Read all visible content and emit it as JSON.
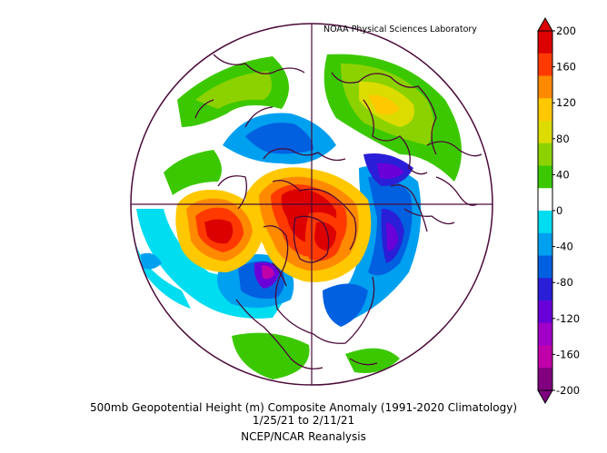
{
  "map": {
    "projection": "north-polar-stereographic",
    "credit": "NOAA Physical Sciences Laboratory",
    "title": "500mb Geopotential Height (m) Composite Anomaly (1991-2020 Climatology)",
    "date_range": "1/25/21  to 2/11/21",
    "source": "NCEP/NCAR Reanalysis"
  },
  "colorbar": {
    "ticks": [
      "200",
      "160",
      "120",
      "80",
      "40",
      "0",
      "-40",
      "-80",
      "-120",
      "-160",
      "-200"
    ],
    "colors": [
      "#dc0000",
      "#ff3a00",
      "#ff8a00",
      "#ffc800",
      "#dcdc00",
      "#8cd200",
      "#3cc800",
      "#ffffff",
      "#00dcf0",
      "#00a0f0",
      "#0060e0",
      "#2a1ed8",
      "#6a00d8",
      "#a000c8",
      "#c000a8",
      "#800080"
    ]
  }
}
